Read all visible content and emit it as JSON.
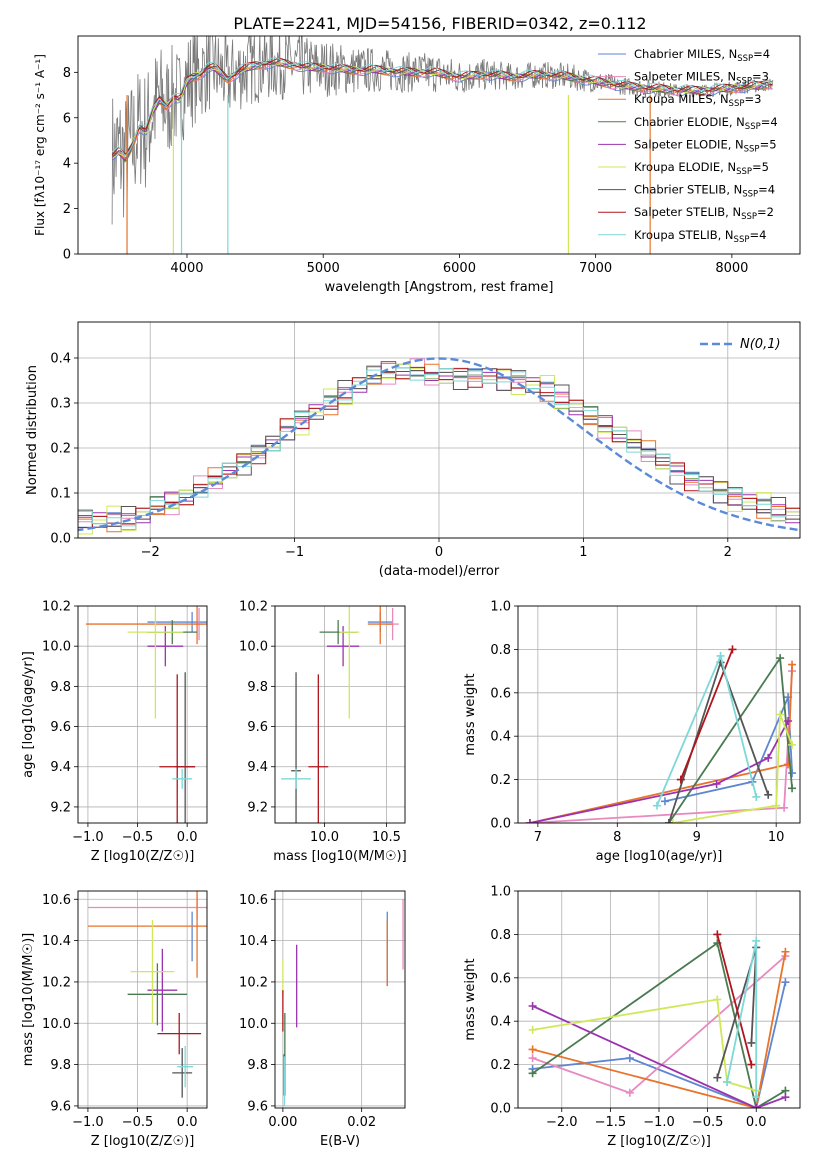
{
  "figure_title": "PLATE=2241, MJD=54156, FIBERID=0342, z=0.112",
  "model_colors": [
    "#5f86d3",
    "#e889c0",
    "#e8732a",
    "#4a7a50",
    "#9b33b0",
    "#cfe85a",
    "#555555",
    "#b0151c",
    "#7dd8d8"
  ],
  "chart_data": [
    {
      "id": "spectrum",
      "type": "line",
      "title": "PLATE=2241, MJD=54156, FIBERID=0342, z=0.112",
      "xlabel": "wavelength [Angstrom, rest frame]",
      "ylabel": "Flux [fλ10⁻¹⁷ erg cm⁻² s⁻¹ A⁻¹]",
      "xlim": [
        3200,
        8500
      ],
      "ylim": [
        0,
        9.6
      ],
      "xticks": [
        4000,
        5000,
        6000,
        7000,
        8000
      ],
      "yticks": [
        0,
        2,
        4,
        6,
        8
      ],
      "grid": false,
      "legend_position": "right",
      "data_line": {
        "x": [
          3450,
          3500,
          3550,
          3600,
          3650,
          3700,
          3750,
          3800,
          3850,
          3900,
          3950,
          4000,
          4050,
          4100,
          4150,
          4200,
          4300,
          4400,
          4500,
          4600,
          4700,
          4800,
          4900,
          5000,
          5200,
          5400,
          5600,
          5800,
          6000,
          6200,
          6400,
          6600,
          6800,
          7000,
          7200,
          7400,
          7600,
          7800,
          8000,
          8200,
          8300
        ],
        "y": [
          4.3,
          4.5,
          4.2,
          4.8,
          5.6,
          5.4,
          6.3,
          6.8,
          6.5,
          6.9,
          6.8,
          7.6,
          7.8,
          7.9,
          8.2,
          8.2,
          7.7,
          8.1,
          8.3,
          8.4,
          8.4,
          8.3,
          8.2,
          8.2,
          8.1,
          8.1,
          8.0,
          8.0,
          7.8,
          7.9,
          7.8,
          7.9,
          7.8,
          7.6,
          7.4,
          7.3,
          7.2,
          7.2,
          7.3,
          7.4,
          7.5
        ],
        "noise_amplitude": [
          3.0,
          3.0,
          3.0,
          3.0,
          2.8,
          2.8,
          2.6,
          2.6,
          2.4,
          2.4,
          2.2,
          2.2,
          2.2,
          2.0,
          2.0,
          1.9,
          1.8,
          1.8,
          1.7,
          1.7,
          1.6,
          1.5,
          1.4,
          1.3,
          1.1,
          1.0,
          0.9,
          0.9,
          0.8,
          0.7,
          0.6,
          0.6,
          0.6,
          0.5,
          0.4,
          0.4,
          0.3,
          0.3,
          0.3,
          0.3,
          0.3
        ]
      },
      "series": [
        {
          "name": "Chabrier MILES, N_SSP=4",
          "label_main": "Chabrier MILES, N",
          "label_sub": "SSP",
          "label_tail": "=4",
          "color": "#5f86d3"
        },
        {
          "name": "Salpeter MILES, N_SSP=3",
          "label_main": "Salpeter MILES, N",
          "label_sub": "SSP",
          "label_tail": "=3",
          "color": "#e889c0"
        },
        {
          "name": "Kroupa MILES, N_SSP=3",
          "label_main": "Kroupa MILES, N",
          "label_sub": "SSP",
          "label_tail": "=3",
          "color": "#e8732a"
        },
        {
          "name": "Chabrier ELODIE, N_SSP=4",
          "label_main": "Chabrier ELODIE, N",
          "label_sub": "SSP",
          "label_tail": "=4",
          "color": "#4a7a50"
        },
        {
          "name": "Salpeter ELODIE, N_SSP=5",
          "label_main": "Salpeter ELODIE, N",
          "label_sub": "SSP",
          "label_tail": "=5",
          "color": "#9b33b0"
        },
        {
          "name": "Kroupa ELODIE, N_SSP=5",
          "label_main": "Kroupa ELODIE, N",
          "label_sub": "SSP",
          "label_tail": "=5",
          "color": "#cfe85a"
        },
        {
          "name": "Chabrier STELIB, N_SSP=4",
          "label_main": "Chabrier STELIB, N",
          "label_sub": "SSP",
          "label_tail": "=4",
          "color": "#555555"
        },
        {
          "name": "Salpeter STELIB, N_SSP=2",
          "label_main": "Salpeter STELIB, N",
          "label_sub": "SSP",
          "label_tail": "=2",
          "color": "#b0151c"
        },
        {
          "name": "Kroupa STELIB, N_SSP=4",
          "label_main": "Kroupa STELIB, N",
          "label_sub": "SSP",
          "label_tail": "=4",
          "color": "#7dd8d8"
        }
      ],
      "model_drops": [
        {
          "x": 3560,
          "color": "#e8732a"
        },
        {
          "x": 3900,
          "color": "#cfe85a"
        },
        {
          "x": 4300,
          "color": "#7dd8d8"
        },
        {
          "x": 3960,
          "color": "#7dd8d8"
        },
        {
          "x": 6800,
          "color": "#cfe85a"
        },
        {
          "x": 7400,
          "color": "#e8732a"
        }
      ]
    },
    {
      "id": "residuals",
      "type": "histogram",
      "xlabel": "(data-model)/error",
      "ylabel": "Normed distribution",
      "xlim": [
        -2.5,
        2.5
      ],
      "ylim": [
        0,
        0.48
      ],
      "xticks": [
        -2,
        -1,
        0,
        1,
        2
      ],
      "yticks": [
        0.0,
        0.1,
        0.2,
        0.3,
        0.4
      ],
      "grid": true,
      "legend_position": "top-right",
      "reference_curve": {
        "name": "N(0,1)",
        "color": "#5b8ad8"
      },
      "bin_centers": [
        -2.45,
        -2.35,
        -2.25,
        -2.15,
        -2.05,
        -1.95,
        -1.85,
        -1.75,
        -1.65,
        -1.55,
        -1.45,
        -1.35,
        -1.25,
        -1.15,
        -1.05,
        -0.95,
        -0.85,
        -0.75,
        -0.65,
        -0.55,
        -0.45,
        -0.35,
        -0.25,
        -0.15,
        -0.05,
        0.05,
        0.15,
        0.25,
        0.35,
        0.45,
        0.55,
        0.65,
        0.75,
        0.85,
        0.95,
        1.05,
        1.15,
        1.25,
        1.35,
        1.45,
        1.55,
        1.65,
        1.75,
        1.85,
        1.95,
        2.05,
        2.15,
        2.25,
        2.35,
        2.45
      ],
      "envelope": [
        0.04,
        0.04,
        0.04,
        0.04,
        0.05,
        0.07,
        0.08,
        0.09,
        0.11,
        0.13,
        0.15,
        0.17,
        0.19,
        0.21,
        0.24,
        0.26,
        0.28,
        0.3,
        0.32,
        0.34,
        0.36,
        0.37,
        0.37,
        0.37,
        0.36,
        0.36,
        0.36,
        0.36,
        0.36,
        0.35,
        0.35,
        0.34,
        0.33,
        0.31,
        0.29,
        0.27,
        0.25,
        0.23,
        0.21,
        0.19,
        0.17,
        0.15,
        0.13,
        0.12,
        0.1,
        0.09,
        0.08,
        0.07,
        0.06,
        0.05
      ],
      "series_offsets": [
        0,
        0.012,
        -0.01,
        0.006,
        -0.006,
        0.015,
        -0.014,
        0.009,
        -0.003
      ]
    },
    {
      "id": "age-vs-Z",
      "type": "errorbar",
      "xlabel": "Z [log10(Z/Z☉)]",
      "ylabel": "age  [log10(age/yr)]",
      "xlim": [
        -1.1,
        0.2
      ],
      "ylim": [
        9.12,
        10.2
      ],
      "xticks": [
        -1.0,
        -0.5,
        0.0
      ],
      "yticks": [
        9.2,
        9.4,
        9.6,
        9.8,
        10.0,
        10.2
      ],
      "grid": true,
      "points": [
        {
          "series": 0,
          "x": 0.05,
          "y": 10.12,
          "xerr": 0.45,
          "yerr": 0.05
        },
        {
          "series": 1,
          "x": 0.12,
          "y": 10.11,
          "xerr": 0.05,
          "yerr": 0.08
        },
        {
          "series": 2,
          "x": 0.1,
          "y": 10.11,
          "xerr": 1.12,
          "yerr": 0.1
        },
        {
          "series": 3,
          "x": -0.15,
          "y": 10.07,
          "xerr": 0.25,
          "yerr": 0.06
        },
        {
          "series": 4,
          "x": -0.22,
          "y": 10.0,
          "xerr": 0.18,
          "yerr": 0.1
        },
        {
          "series": 5,
          "x": -0.32,
          "y": 10.07,
          "xerr": 0.28,
          "yerr": 0.43
        },
        {
          "series": 6,
          "x": -0.02,
          "y": 9.4,
          "xerr": 0.1,
          "yerr": 0.47
        },
        {
          "series": 7,
          "x": -0.1,
          "y": 9.4,
          "xerr": 0.18,
          "yerr": 0.46
        },
        {
          "series": 8,
          "x": -0.05,
          "y": 9.34,
          "xerr": 0.1,
          "yerr": 0.05
        }
      ]
    },
    {
      "id": "age-vs-mass",
      "type": "errorbar",
      "xlabel": "mass [log10(M/M☉)]",
      "ylabel": "",
      "xlim": [
        9.6,
        10.65
      ],
      "ylim": [
        9.12,
        10.2
      ],
      "xticks": [
        10.0,
        10.5
      ],
      "yticks": [
        9.2,
        9.4,
        9.6,
        9.8,
        10.0,
        10.2
      ],
      "grid": true,
      "points": [
        {
          "series": 0,
          "x": 10.45,
          "y": 10.12,
          "xerr": 0.1,
          "yerr": 0.05
        },
        {
          "series": 1,
          "x": 10.55,
          "y": 10.11,
          "xerr": 0.05,
          "yerr": 0.08
        },
        {
          "series": 2,
          "x": 10.45,
          "y": 10.11,
          "xerr": 0.1,
          "yerr": 0.1
        },
        {
          "series": 3,
          "x": 10.11,
          "y": 10.07,
          "xerr": 0.15,
          "yerr": 0.06
        },
        {
          "series": 4,
          "x": 10.15,
          "y": 10.0,
          "xerr": 0.13,
          "yerr": 0.1
        },
        {
          "series": 5,
          "x": 10.2,
          "y": 10.07,
          "xerr": 0.08,
          "yerr": 0.43
        },
        {
          "series": 6,
          "x": 9.77,
          "y": 9.38,
          "xerr": 0.04,
          "yerr": 0.49
        },
        {
          "series": 7,
          "x": 9.95,
          "y": 9.4,
          "xerr": 0.08,
          "yerr": 0.46
        },
        {
          "series": 8,
          "x": 9.77,
          "y": 9.34,
          "xerr": 0.12,
          "yerr": 0.05
        }
      ]
    },
    {
      "id": "weight-vs-age",
      "type": "line",
      "xlabel": "age  [log10(age/yr)]",
      "ylabel": "mass weight",
      "xlim": [
        6.75,
        10.3
      ],
      "ylim": [
        0,
        1.0
      ],
      "xticks": [
        7,
        8,
        9,
        10
      ],
      "yticks": [
        0.0,
        0.2,
        0.4,
        0.6,
        0.8,
        1.0
      ],
      "grid": true,
      "series": [
        {
          "series": 0,
          "x": [
            8.6,
            9.7,
            10.15,
            10.2
          ],
          "y": [
            0.1,
            0.19,
            0.58,
            0.23
          ]
        },
        {
          "series": 1,
          "x": [
            6.9,
            10.1,
            10.2
          ],
          "y": [
            0.0,
            0.07,
            0.7
          ]
        },
        {
          "series": 2,
          "x": [
            6.9,
            10.15,
            10.2
          ],
          "y": [
            0.0,
            0.27,
            0.73
          ]
        },
        {
          "series": 3,
          "x": [
            8.65,
            10.05,
            10.2
          ],
          "y": [
            0.0,
            0.76,
            0.16
          ]
        },
        {
          "series": 4,
          "x": [
            6.9,
            9.25,
            9.9,
            10.15
          ],
          "y": [
            0.0,
            0.18,
            0.3,
            0.47
          ]
        },
        {
          "series": 5,
          "x": [
            8.7,
            10.0,
            10.05,
            10.2
          ],
          "y": [
            0.0,
            0.08,
            0.5,
            0.36
          ]
        },
        {
          "series": 6,
          "x": [
            8.65,
            9.3,
            9.9
          ],
          "y": [
            0.0,
            0.74,
            0.13
          ]
        },
        {
          "series": 7,
          "x": [
            8.8,
            9.45
          ],
          "y": [
            0.2,
            0.8
          ]
        },
        {
          "series": 8,
          "x": [
            8.5,
            9.3,
            9.75
          ],
          "y": [
            0.08,
            0.77,
            0.12
          ]
        }
      ]
    },
    {
      "id": "mass-vs-Z",
      "type": "errorbar",
      "xlabel": "Z [log10(Z/Z☉)]",
      "ylabel": "mass [log10(M/M☉)]",
      "xlim": [
        -1.1,
        0.2
      ],
      "ylim": [
        9.59,
        10.64
      ],
      "xticks": [
        -1.0,
        -0.5,
        0.0
      ],
      "yticks": [
        9.6,
        9.8,
        10.0,
        10.2,
        10.4,
        10.6
      ],
      "grid": true,
      "points": [
        {
          "series": 0,
          "x": 0.05,
          "y": 10.42,
          "xerr": 0.0,
          "yerr": 0.12
        },
        {
          "series": 1,
          "x": 0.1,
          "y": 10.56,
          "xerr": 1.1,
          "yerr": 0.06
        },
        {
          "series": 2,
          "x": 0.1,
          "y": 10.47,
          "xerr": 1.1,
          "yerr": 0.25
        },
        {
          "series": 3,
          "x": -0.3,
          "y": 10.14,
          "xerr": 0.3,
          "yerr": 0.15
        },
        {
          "series": 4,
          "x": -0.25,
          "y": 10.16,
          "xerr": 0.15,
          "yerr": 0.2
        },
        {
          "series": 5,
          "x": -0.35,
          "y": 10.25,
          "xerr": 0.22,
          "yerr": 0.25
        },
        {
          "series": 6,
          "x": -0.05,
          "y": 9.76,
          "xerr": 0.1,
          "yerr": 0.12
        },
        {
          "series": 7,
          "x": -0.08,
          "y": 9.95,
          "xerr": 0.22,
          "yerr": 0.1
        },
        {
          "series": 8,
          "x": -0.02,
          "y": 9.79,
          "xerr": 0.08,
          "yerr": 0.1
        }
      ]
    },
    {
      "id": "mass-vs-ebv",
      "type": "errorbar",
      "xlabel": "E(B-V)",
      "ylabel": "",
      "xlim": [
        -0.002,
        0.031
      ],
      "ylim": [
        9.59,
        10.64
      ],
      "xticks": [
        0.0,
        0.02
      ],
      "yticks": [
        9.6,
        9.8,
        10.0,
        10.2,
        10.4,
        10.6
      ],
      "grid": true,
      "points": [
        {
          "series": 0,
          "x": 0.0265,
          "y": 10.36,
          "xerr": 0.0,
          "yerr": 0.18
        },
        {
          "series": 1,
          "x": 0.0305,
          "y": 10.43,
          "xerr": 0.0,
          "yerr": 0.17
        },
        {
          "series": 2,
          "x": 0.0265,
          "y": 10.34,
          "xerr": 0.0,
          "yerr": 0.16
        },
        {
          "series": 3,
          "x": 0.0005,
          "y": 9.85,
          "xerr": 0.0,
          "yerr": 0.2
        },
        {
          "series": 4,
          "x": 0.0035,
          "y": 10.18,
          "xerr": 0.0,
          "yerr": 0.2
        },
        {
          "series": 5,
          "x": 0.0,
          "y": 10.22,
          "xerr": 0.0,
          "yerr": 0.09
        },
        {
          "series": 6,
          "x": 0.0003,
          "y": 9.75,
          "xerr": 0.0,
          "yerr": 0.1
        },
        {
          "series": 7,
          "x": 0.0,
          "y": 10.06,
          "xerr": 0.0,
          "yerr": 0.1
        },
        {
          "series": 8,
          "x": 0.0004,
          "y": 9.72,
          "xerr": 0.0,
          "yerr": 0.12
        }
      ]
    },
    {
      "id": "weight-vs-Z",
      "type": "line",
      "xlabel": "Z [log10(Z/Z☉)]",
      "ylabel": "mass weight",
      "xlim": [
        -2.45,
        0.45
      ],
      "ylim": [
        0,
        1.0
      ],
      "xticks": [
        -2.0,
        -1.5,
        -1.0,
        -0.5,
        0.0
      ],
      "yticks": [
        0.0,
        0.2,
        0.4,
        0.6,
        0.8,
        1.0
      ],
      "grid": true,
      "series": [
        {
          "series": 0,
          "x": [
            -2.3,
            -1.3,
            0.0,
            0.3
          ],
          "y": [
            0.18,
            0.23,
            0.0,
            0.58
          ]
        },
        {
          "series": 1,
          "x": [
            -2.3,
            -1.3,
            0.3
          ],
          "y": [
            0.23,
            0.07,
            0.7
          ]
        },
        {
          "series": 2,
          "x": [
            -2.3,
            0.0,
            0.3
          ],
          "y": [
            0.27,
            0.0,
            0.72
          ]
        },
        {
          "series": 3,
          "x": [
            -2.3,
            -0.4,
            0.0,
            0.3
          ],
          "y": [
            0.16,
            0.76,
            0.0,
            0.08
          ]
        },
        {
          "series": 4,
          "x": [
            -2.3,
            0.0,
            0.3
          ],
          "y": [
            0.47,
            0.0,
            0.05
          ]
        },
        {
          "series": 5,
          "x": [
            -2.3,
            -0.4,
            -0.3,
            0.0
          ],
          "y": [
            0.36,
            0.5,
            0.12,
            0.08
          ]
        },
        {
          "series": 6,
          "x": [
            -0.4,
            0.0,
            -0.05
          ],
          "y": [
            0.14,
            0.74,
            0.3
          ]
        },
        {
          "series": 7,
          "x": [
            -0.4,
            -0.05
          ],
          "y": [
            0.8,
            0.2
          ]
        },
        {
          "series": 8,
          "x": [
            -0.3,
            0.0,
            0.0
          ],
          "y": [
            0.12,
            0.77,
            0.05
          ]
        }
      ]
    }
  ]
}
